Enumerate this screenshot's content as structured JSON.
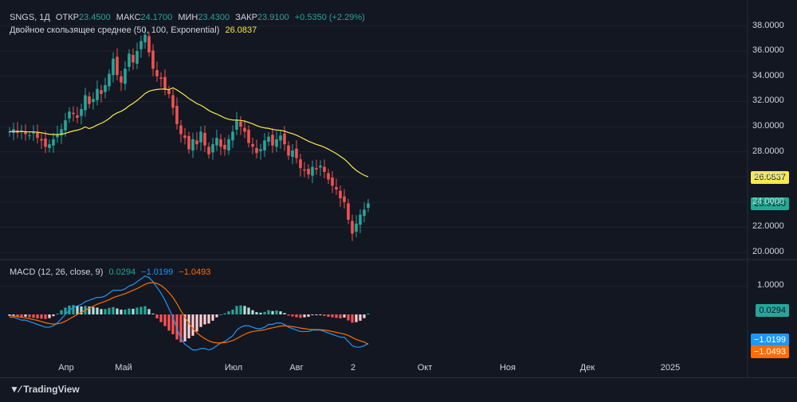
{
  "legend": {
    "symbol": "SNGS, 1Д",
    "open_label": "ОТКР",
    "open": "23.4500",
    "high_label": "МАКС",
    "high": "24.1700",
    "low_label": "МИН",
    "low": "23.4300",
    "close_label": "ЗАКР",
    "close": "23.9100",
    "change": "+0.5350 (+2.29%)",
    "ma_label": "Двойное скользящее среднее (50, 100, Exponential)",
    "ma_value": "26.0837",
    "macd_label": "MACD (12, 26, close, 9)",
    "macd_hist": "0.0294",
    "macd_line": "−1.0199",
    "macd_signal": "−1.0493"
  },
  "tags": {
    "ma": "26.0837",
    "price": "23.9100",
    "hist": "0.0294",
    "macd": "−1.0199",
    "signal": "−1.0493"
  },
  "colors": {
    "up": "#26a69a",
    "down": "#ef5350",
    "ma": "#f7e94e",
    "macd": "#2962ff",
    "signal": "#ff6d00",
    "price_tag": "#22ab94",
    "bg": "#131722"
  },
  "footer": {
    "brand": "TradingView"
  },
  "chart_data": [
    {
      "type": "candlestick",
      "price_axis": {
        "ticks": [
          "38.0000",
          "36.0000",
          "34.0000",
          "32.0000",
          "30.0000",
          "28.0000",
          "26.0000",
          "24.0000",
          "22.0000",
          "20.0000"
        ],
        "ylim": [
          19.5,
          38.8
        ]
      },
      "time_axis": {
        "labels": [
          "Апр",
          "Май",
          "Июл",
          "Авг",
          "2",
          "Окт",
          "Ноя",
          "Дек",
          "2025"
        ]
      },
      "series": [
        {
          "name": "SNGS",
          "close": [
            29.6,
            29.8,
            29.5,
            29.7,
            29.4,
            29.3,
            29.6,
            29.1,
            28.9,
            28.4,
            28.6,
            29.0,
            29.4,
            29.8,
            30.5,
            31.2,
            31.0,
            30.7,
            31.4,
            32.5,
            31.8,
            32.2,
            33.0,
            32.6,
            33.3,
            34.2,
            35.4,
            34.1,
            33.5,
            34.6,
            35.8,
            35.1,
            36.0,
            36.8,
            37.3,
            35.9,
            34.6,
            34.0,
            33.8,
            33.0,
            32.6,
            31.5,
            30.2,
            29.4,
            29.1,
            28.2,
            29.0,
            28.6,
            29.6,
            28.5,
            27.8,
            28.6,
            29.1,
            28.4,
            28.2,
            29.0,
            29.6,
            30.5,
            30.0,
            29.6,
            28.7,
            28.4,
            27.9,
            28.2,
            28.9,
            29.2,
            28.5,
            29.0,
            29.3,
            28.6,
            27.7,
            28.1,
            27.5,
            26.7,
            26.5,
            26.2,
            26.8,
            26.6,
            26.9,
            26.4,
            25.8,
            25.3,
            25.0,
            24.3,
            24.0,
            22.6,
            21.5,
            22.3,
            23.0,
            23.4,
            23.9
          ]
        }
      ]
    },
    {
      "type": "macd",
      "axis": {
        "ticks": [
          "1.0000"
        ]
      },
      "series": [
        {
          "name": "MACD",
          "values": [
            -0.1,
            -0.1,
            -0.15,
            -0.2,
            -0.2,
            -0.25,
            -0.3,
            -0.35,
            -0.4,
            -0.45,
            -0.45,
            -0.4,
            -0.3,
            -0.15,
            0.0,
            0.15,
            0.25,
            0.3,
            0.35,
            0.45,
            0.5,
            0.55,
            0.6,
            0.6,
            0.65,
            0.75,
            0.85,
            0.85,
            0.85,
            0.9,
            1.0,
            1.05,
            1.15,
            1.25,
            1.35,
            1.3,
            1.15,
            0.95,
            0.75,
            0.5,
            0.2,
            -0.1,
            -0.5,
            -0.85,
            -1.05,
            -1.15,
            -1.25,
            -1.25,
            -1.2,
            -1.2,
            -1.25,
            -1.2,
            -1.1,
            -1.0,
            -0.95,
            -0.85,
            -0.75,
            -0.55,
            -0.45,
            -0.4,
            -0.4,
            -0.45,
            -0.5,
            -0.5,
            -0.45,
            -0.35,
            -0.35,
            -0.3,
            -0.3,
            -0.35,
            -0.45,
            -0.5,
            -0.55,
            -0.6,
            -0.6,
            -0.6,
            -0.55,
            -0.55,
            -0.55,
            -0.6,
            -0.65,
            -0.7,
            -0.75,
            -0.8,
            -0.8,
            -0.95,
            -1.1,
            -1.15,
            -1.15,
            -1.1,
            -1.02
          ]
        },
        {
          "name": "Signal",
          "values": [
            -0.05,
            -0.06,
            -0.08,
            -0.1,
            -0.12,
            -0.15,
            -0.18,
            -0.21,
            -0.25,
            -0.29,
            -0.32,
            -0.34,
            -0.33,
            -0.3,
            -0.24,
            -0.16,
            -0.08,
            0.0,
            0.07,
            0.15,
            0.22,
            0.29,
            0.36,
            0.41,
            0.46,
            0.52,
            0.59,
            0.64,
            0.68,
            0.73,
            0.79,
            0.85,
            0.91,
            0.98,
            1.06,
            1.11,
            1.12,
            1.09,
            1.02,
            0.91,
            0.77,
            0.6,
            0.38,
            0.13,
            -0.1,
            -0.31,
            -0.5,
            -0.65,
            -0.76,
            -0.85,
            -0.93,
            -0.98,
            -1.0,
            -1.0,
            -0.99,
            -0.96,
            -0.92,
            -0.85,
            -0.77,
            -0.7,
            -0.64,
            -0.6,
            -0.58,
            -0.56,
            -0.54,
            -0.5,
            -0.47,
            -0.44,
            -0.41,
            -0.4,
            -0.41,
            -0.43,
            -0.45,
            -0.48,
            -0.5,
            -0.52,
            -0.53,
            -0.53,
            -0.54,
            -0.55,
            -0.57,
            -0.6,
            -0.63,
            -0.66,
            -0.69,
            -0.74,
            -0.81,
            -0.88,
            -0.93,
            -0.97,
            -1.05
          ]
        }
      ]
    }
  ]
}
